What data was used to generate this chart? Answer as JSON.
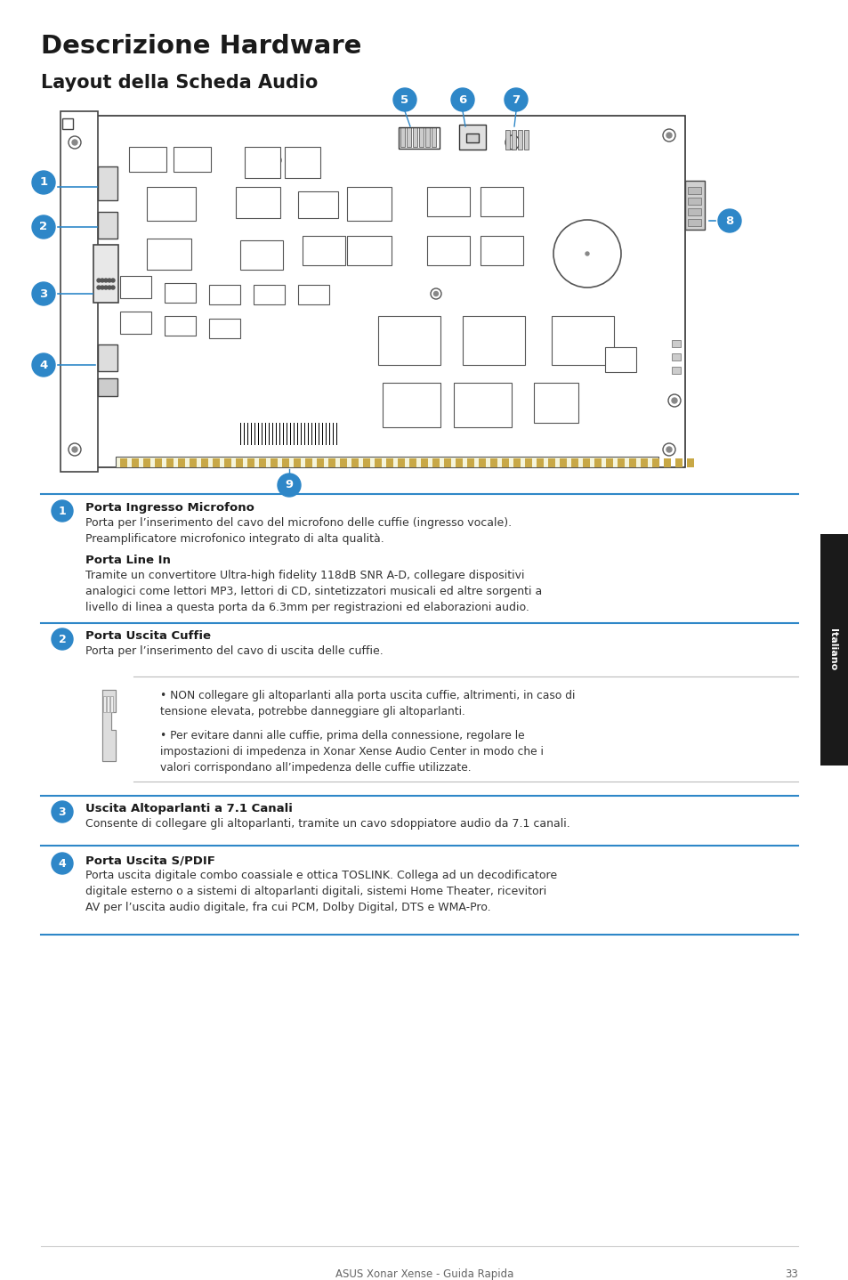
{
  "title": "Descrizione Hardware",
  "subtitle": "Layout della Scheda Audio",
  "bg_color": "#ffffff",
  "title_color": "#1a1a1a",
  "subtitle_color": "#1a1a1a",
  "callout_bg": "#2e87c8",
  "callout_fg": "#ffffff",
  "line_color": "#2e87c8",
  "sidebar_text": "Italiano",
  "footer_text": "ASUS Xonar Xense - Guida Rapida",
  "footer_page": "33",
  "sec1_title": "Porta Ingresso Microfono",
  "sec1_body1": "Porta per l’inserimento del cavo del microfono delle cuffie (ingresso vocale).\nPreamplificatore microfonico integrato di alta qualità.",
  "sec1_sub_title": "Porta Line In",
  "sec1_body2": "Tramite un convertitore Ultra-high fidelity 118dB SNR A-D, collegare dispositivi\nanalogici come lettori MP3, lettori di CD, sintetizzatori musicali ed altre sorgenti a\nlivello di linea a questa porta da 6.3mm per registrazioni ed elaborazioni audio.",
  "sec2_title": "Porta Uscita Cuffie",
  "sec2_body": "Porta per l’inserimento del cavo di uscita delle cuffie.",
  "warn1": "NON collegare gli altoparlanti alla porta uscita cuffie, altrimenti, in caso di\ntensione elevata, potrebbe danneggiare gli altoparlanti.",
  "warn2": "Per evitare danni alle cuffie, prima della connessione, regolare le\nimpostazioni di impedenza in Xonar Xense Audio Center in modo che i\nvalori corrispondano all’impedenza delle cuffie utilizzate.",
  "sec3_title": "Uscita Altoparlanti a 7.1 Canali",
  "sec3_body": "Consente di collegare gli altoparlanti, tramite un cavo sdoppiatore audio da 7.1 canali.",
  "sec4_title": "Porta Uscita S/PDIF",
  "sec4_body": "Porta uscita digitale combo coassiale e ottica TOSLINK. Collega ad un decodificatore\ndigitale esterno o a sistemi di altoparlanti digitali, sistemi Home Theater, ricevitori\nAV per l’uscita audio digitale, fra cui PCM, Dolby Digital, DTS e WMA-Pro."
}
